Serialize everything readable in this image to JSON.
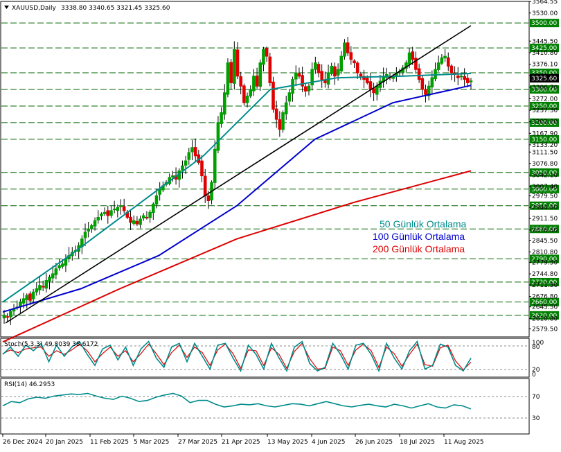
{
  "header": {
    "symbol": "XAUUSD,Daily",
    "ohlc": "3338.80 3340.65 3321.45 3325.60"
  },
  "colors": {
    "up": "#00a000",
    "down": "#e00000",
    "wick": "#000000",
    "ma50": "#008b8b",
    "ma100": "#0000cd",
    "ma200": "#dd0000",
    "trend": "#000000",
    "level": "#008000",
    "stoch_main": "#008b8b",
    "stoch_signal": "#dd0000",
    "rsi": "#008b8b"
  },
  "chart_data": [
    {
      "type": "candlestick",
      "ylim": [
        2555,
        3565
      ],
      "y_ticks": [
        "3564.55",
        "3530.00",
        "3445.50",
        "3410.80",
        "3376.10",
        "3341.40",
        "3306.70",
        "3272.00",
        "3237.30",
        "3202.60",
        "3167.90",
        "3133.20",
        "3111.50",
        "3076.80",
        "3042.10",
        "3007.40",
        "2979.50",
        "2944.80",
        "2911.50",
        "2876.80",
        "2845.50",
        "2810.80",
        "2779.50",
        "2744.80",
        "2711.50",
        "2676.80",
        "2645.50",
        "2610.80",
        "2579.50"
      ],
      "x_labels": [
        "26 Dec 2024",
        "20 Jan 2025",
        "11 Feb 2025",
        "5 Mar 2025",
        "27 Mar 2025",
        "21 Apr 2025",
        "13 May 2025",
        "4 Jun 2025",
        "26 Jun 2025",
        "18 Jul 2025",
        "11 Aug 2025"
      ],
      "levels": [
        "3500.00",
        "3425.00",
        "3350.00",
        "3300.00",
        "3250.00",
        "3200.00",
        "3150.00",
        "3050.00",
        "3000.00",
        "2950.00",
        "2880.00",
        "2790.00",
        "2720.00",
        "2660.00",
        "2620.00"
      ],
      "current_price": "3325.60",
      "legend": [
        {
          "name": "50 Günlük Ortalama",
          "color": "#008b8b"
        },
        {
          "name": "100 Günlük Ortalama",
          "color": "#0000cd"
        },
        {
          "name": "200 Günlük Ortalama",
          "color": "#dd0000"
        }
      ],
      "series": [
        {
          "name": "Close (approx.)",
          "values": [
            2620,
            2615,
            2632,
            2640,
            2645,
            2660,
            2670,
            2680,
            2665,
            2690,
            2700,
            2710,
            2705,
            2725,
            2735,
            2745,
            2760,
            2770,
            2775,
            2790,
            2800,
            2810,
            2815,
            2830,
            2850,
            2870,
            2880,
            2890,
            2905,
            2915,
            2925,
            2930,
            2920,
            2935,
            2940,
            2945,
            2950,
            2935,
            2915,
            2900,
            2905,
            2895,
            2910,
            2920,
            2915,
            2930,
            2955,
            2980,
            3000,
            3010,
            3020,
            3035,
            3040,
            3030,
            3055,
            3070,
            3085,
            3110,
            3125,
            3100,
            3080,
            3040,
            2980,
            2965,
            3020,
            3120,
            3200,
            3230,
            3290,
            3380,
            3320,
            3420,
            3340,
            3310,
            3260,
            3280,
            3300,
            3340,
            3310,
            3380,
            3420,
            3400,
            3320,
            3240,
            3210,
            3180,
            3230,
            3260,
            3290,
            3330,
            3350,
            3340,
            3310,
            3295,
            3310,
            3360,
            3380,
            3350,
            3330,
            3320,
            3350,
            3370,
            3340,
            3360,
            3400,
            3440,
            3410,
            3390,
            3380,
            3350,
            3340,
            3330,
            3320,
            3300,
            3290,
            3310,
            3325,
            3340,
            3345,
            3335,
            3340,
            3350,
            3355,
            3365,
            3380,
            3410,
            3390,
            3360,
            3330,
            3300,
            3285,
            3310,
            3335,
            3360,
            3380,
            3395,
            3400,
            3370,
            3350,
            3345,
            3335,
            3340,
            3330,
            3320,
            3325.6
          ]
        },
        {
          "name": "50 Günlük Ortalama",
          "values": [
            2660,
            2800,
            2950,
            3100,
            3300,
            3335,
            3340,
            3348
          ]
        },
        {
          "name": "100 Günlük Ortalama",
          "values": [
            2630,
            2700,
            2800,
            2950,
            3150,
            3260,
            3312
          ]
        },
        {
          "name": "200 Günlük Ortalama",
          "values": [
            2540,
            2700,
            2850,
            2960,
            3055
          ]
        }
      ]
    },
    {
      "type": "line",
      "title": "Stoch(5,3,3) 49.8039 38.6172",
      "ylim": [
        0,
        100
      ],
      "y_ticks": [
        "100",
        "80",
        "20",
        "0"
      ],
      "series": [
        {
          "name": "main",
          "values": [
            60,
            80,
            55,
            85,
            70,
            90,
            40,
            85,
            55,
            80,
            95,
            60,
            30,
            75,
            85,
            45,
            80,
            30,
            75,
            95,
            50,
            25,
            80,
            90,
            40,
            90,
            55,
            20,
            85,
            90,
            50,
            15,
            85,
            60,
            20,
            90,
            50,
            15,
            80,
            95,
            35,
            15,
            25,
            90,
            60,
            20,
            85,
            90,
            60,
            15,
            90,
            50,
            20,
            70,
            95,
            20,
            30,
            88,
            80,
            30,
            15,
            49.8
          ]
        },
        {
          "name": "signal",
          "values": [
            62,
            72,
            65,
            75,
            78,
            80,
            55,
            70,
            60,
            72,
            88,
            70,
            40,
            62,
            80,
            55,
            70,
            40,
            62,
            88,
            62,
            32,
            65,
            85,
            52,
            80,
            65,
            30,
            72,
            88,
            62,
            22,
            72,
            70,
            30,
            78,
            60,
            22,
            68,
            90,
            48,
            20,
            22,
            80,
            70,
            30,
            72,
            88,
            70,
            25,
            80,
            62,
            28,
            60,
            88,
            32,
            28,
            78,
            85,
            42,
            18,
            38.6
          ]
        }
      ]
    },
    {
      "type": "line",
      "title": "RSI(14) 46.2953",
      "ylim": [
        0,
        100
      ],
      "y_ticks": [
        "70",
        "30"
      ],
      "series": [
        {
          "name": "RSI(14)",
          "values": [
            52,
            60,
            58,
            65,
            68,
            66,
            70,
            72,
            74,
            73,
            75,
            70,
            66,
            64,
            70,
            66,
            60,
            62,
            68,
            72,
            75,
            70,
            58,
            62,
            62,
            55,
            50,
            52,
            55,
            54,
            56,
            52,
            50,
            53,
            56,
            55,
            52,
            56,
            60,
            56,
            52,
            50,
            53,
            55,
            52,
            50,
            55,
            52,
            48,
            52,
            56,
            50,
            48,
            54,
            52,
            46.3
          ]
        }
      ]
    }
  ]
}
